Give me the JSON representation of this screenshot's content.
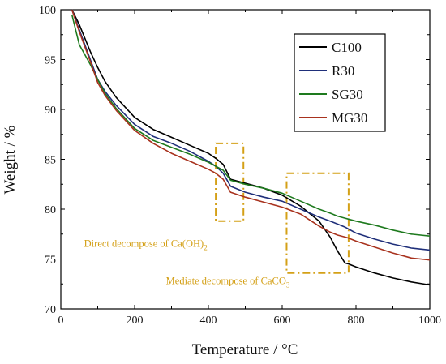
{
  "chart_data": {
    "type": "line",
    "xlabel": "Temperature / °C",
    "ylabel": "Weight / %",
    "xlim": [
      0,
      1000
    ],
    "ylim": [
      70,
      100
    ],
    "xticks": [
      "0",
      "200",
      "400",
      "600",
      "800",
      "1000"
    ],
    "yticks": [
      "70",
      "75",
      "80",
      "85",
      "90",
      "95",
      "100"
    ],
    "grid": false,
    "legend_position": "top-right",
    "series": [
      {
        "name": "C100",
        "color": "#000000",
        "x": [
          30,
          50,
          80,
          100,
          120,
          150,
          200,
          250,
          300,
          350,
          400,
          420,
          440,
          460,
          500,
          550,
          600,
          650,
          700,
          730,
          750,
          770,
          780,
          800,
          850,
          900,
          950,
          1000
        ],
        "y": [
          100,
          98.5,
          95.8,
          94.2,
          92.8,
          91.2,
          89.2,
          88.0,
          87.2,
          86.4,
          85.6,
          85.1,
          84.5,
          83.0,
          82.6,
          82.1,
          81.4,
          80.3,
          78.8,
          77.2,
          75.8,
          74.6,
          74.5,
          74.2,
          73.6,
          73.1,
          72.7,
          72.4
        ]
      },
      {
        "name": "R30",
        "color": "#1f2f7a",
        "x": [
          30,
          50,
          80,
          100,
          120,
          150,
          200,
          250,
          300,
          350,
          400,
          420,
          440,
          460,
          500,
          550,
          600,
          650,
          700,
          730,
          750,
          770,
          780,
          800,
          850,
          900,
          950,
          1000
        ],
        "y": [
          100,
          98.0,
          95.0,
          93.0,
          91.8,
          90.4,
          88.5,
          87.3,
          86.6,
          85.8,
          84.8,
          84.3,
          83.6,
          82.3,
          81.7,
          81.2,
          80.8,
          80.0,
          79.2,
          78.8,
          78.5,
          78.2,
          78.0,
          77.6,
          77.0,
          76.5,
          76.1,
          75.9
        ]
      },
      {
        "name": "SG30",
        "color": "#1e7a1e",
        "x": [
          30,
          50,
          80,
          100,
          120,
          150,
          200,
          250,
          300,
          350,
          400,
          420,
          440,
          460,
          500,
          550,
          600,
          650,
          700,
          730,
          750,
          770,
          780,
          800,
          850,
          900,
          950,
          1000
        ],
        "y": [
          99.5,
          96.5,
          94.5,
          93.0,
          91.6,
          90.1,
          88.1,
          86.9,
          86.2,
          85.5,
          84.7,
          84.3,
          83.9,
          82.9,
          82.5,
          82.1,
          81.6,
          80.8,
          80.0,
          79.6,
          79.3,
          79.1,
          79.0,
          78.8,
          78.4,
          77.9,
          77.5,
          77.3
        ]
      },
      {
        "name": "MG30",
        "color": "#a8321e",
        "x": [
          30,
          50,
          80,
          100,
          120,
          150,
          200,
          250,
          300,
          350,
          400,
          420,
          440,
          460,
          500,
          550,
          600,
          650,
          700,
          730,
          750,
          770,
          780,
          800,
          850,
          900,
          950,
          1000
        ],
        "y": [
          100,
          97.8,
          94.8,
          92.7,
          91.4,
          89.9,
          87.9,
          86.6,
          85.6,
          84.8,
          84.0,
          83.6,
          83.0,
          81.7,
          81.2,
          80.7,
          80.2,
          79.5,
          78.3,
          77.7,
          77.4,
          77.2,
          77.1,
          76.8,
          76.2,
          75.6,
          75.1,
          74.9
        ]
      }
    ],
    "annotations": [
      {
        "text_main": "Direct decompose of Ca(OH)",
        "text_sub": "2",
        "color": "#d4a017",
        "box_x": [
          420,
          495
        ],
        "box_y": [
          78.8,
          86.6
        ],
        "text_x": 63,
        "text_y": 76.2
      },
      {
        "text_main": "Mediate decompose of CaCO",
        "text_sub": "3",
        "color": "#d4a017",
        "box_x": [
          612,
          780
        ],
        "box_y": [
          73.6,
          83.6
        ],
        "text_x": 285,
        "text_y": 72.5
      }
    ]
  }
}
